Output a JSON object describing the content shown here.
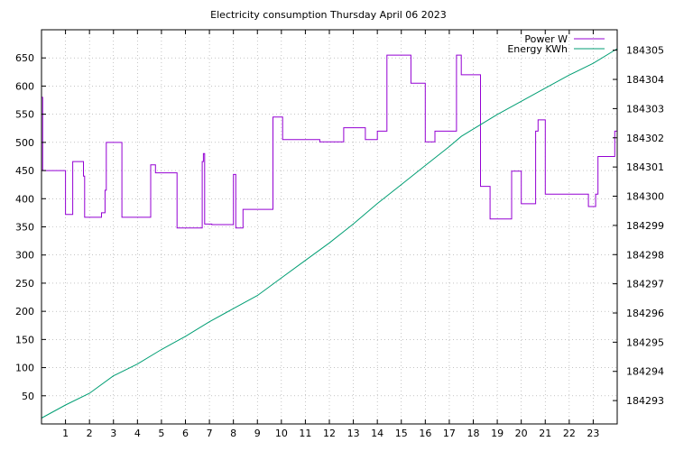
{
  "chart_data": {
    "type": "line",
    "title": "Electricity consumption Thursday April 06 2023",
    "xlabel": "",
    "ylabel": "",
    "y2label": "",
    "xlim": [
      0,
      24
    ],
    "ylim": [
      0,
      700
    ],
    "y2lim": [
      184292.2,
      184305.7
    ],
    "x_ticks": [
      "1",
      "2",
      "3",
      "4",
      "5",
      "6",
      "7",
      "8",
      "9",
      "10",
      "11",
      "12",
      "13",
      "14",
      "15",
      "16",
      "17",
      "18",
      "19",
      "20",
      "21",
      "22",
      "23"
    ],
    "y_ticks": [
      "50",
      "100",
      "150",
      "200",
      "250",
      "300",
      "350",
      "400",
      "450",
      "500",
      "550",
      "600",
      "650"
    ],
    "y2_ticks": [
      "184293",
      "184294",
      "184295",
      "184296",
      "184297",
      "184298",
      "184299",
      "184300",
      "184301",
      "184302",
      "184303",
      "184304",
      "184305"
    ],
    "grid": true,
    "legend_position": "top-right",
    "series": [
      {
        "name": "Power W",
        "axis": "left",
        "color": "#9400d3",
        "step": true,
        "x": [
          0,
          0.05,
          0.1,
          1.0,
          1.25,
          1.3,
          1.75,
          1.8,
          2.3,
          2.5,
          2.55,
          2.65,
          2.7,
          2.95,
          3.35,
          4.4,
          4.55,
          4.75,
          5.6,
          5.65,
          5.9,
          6.7,
          6.75,
          6.8,
          7.1,
          7.6,
          8.0,
          8.05,
          8.1,
          8.4,
          9.6,
          9.65,
          10.05,
          10.6,
          11.6,
          12.6,
          13.5,
          14.0,
          14.05,
          14.4,
          15.4,
          16.0,
          16.4,
          17.0,
          17.3,
          17.5,
          18.3,
          18.6,
          18.7,
          18.8,
          19.6,
          20.0,
          20.6,
          20.7,
          21.0,
          21.9,
          22.8,
          23.0,
          23.1,
          23.2,
          23.9
        ],
        "y": [
          580,
          450,
          450,
          372,
          372,
          466,
          440,
          367,
          367,
          375,
          375,
          415,
          500,
          500,
          367,
          367,
          460,
          446,
          446,
          348,
          348,
          466,
          480,
          355,
          354,
          354,
          443,
          443,
          348,
          381,
          381,
          545,
          505,
          505,
          501,
          526,
          505,
          520,
          520,
          655,
          605,
          501,
          520,
          520,
          655,
          620,
          422,
          422,
          364,
          364,
          449,
          391,
          520,
          540,
          408,
          408,
          386,
          386,
          408,
          475,
          520
        ]
      },
      {
        "name": "Energy KWh",
        "axis": "right",
        "color": "#009e73",
        "step": false,
        "x": [
          0,
          1,
          2,
          3,
          4,
          5,
          6,
          7,
          8,
          9,
          10,
          11,
          12,
          13,
          14,
          15,
          16,
          17,
          17.5,
          18,
          19,
          20,
          21,
          22,
          23,
          24
        ],
        "y": [
          184292.4,
          184292.85,
          184293.25,
          184293.85,
          184294.25,
          184294.75,
          184295.2,
          184295.7,
          184296.15,
          184296.6,
          184297.2,
          184297.8,
          184298.4,
          184299.05,
          184299.75,
          184300.4,
          184301.05,
          184301.7,
          184302.05,
          184302.3,
          184302.8,
          184303.25,
          184303.7,
          184304.15,
          184304.55,
          184305.05
        ]
      }
    ]
  }
}
